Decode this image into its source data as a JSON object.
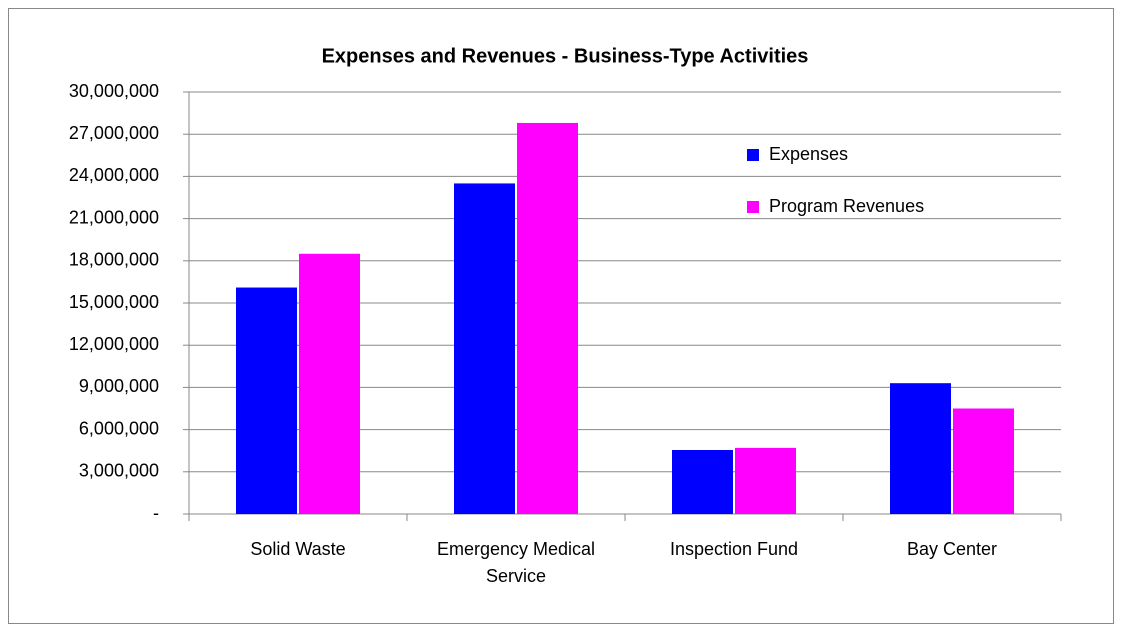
{
  "chart_data": {
    "type": "bar",
    "title": "Expenses and Revenues - Business-Type  Activities",
    "categories": [
      "Solid Waste",
      "Emergency Medical Service",
      "Inspection Fund",
      "Bay Center"
    ],
    "series": [
      {
        "name": "Expenses",
        "color": "#0000ff",
        "values": [
          16100000,
          23500000,
          4550000,
          9300000
        ]
      },
      {
        "name": "Program Revenues",
        "color": "#ff00ff",
        "values": [
          18500000,
          27800000,
          4700000,
          7500000
        ]
      }
    ],
    "ylim": [
      0,
      30000000
    ],
    "yticks": [
      {
        "value": 0,
        "label": "-"
      },
      {
        "value": 3000000,
        "label": "3,000,000"
      },
      {
        "value": 6000000,
        "label": "6,000,000"
      },
      {
        "value": 9000000,
        "label": "9,000,000"
      },
      {
        "value": 12000000,
        "label": "12,000,000"
      },
      {
        "value": 15000000,
        "label": "15,000,000"
      },
      {
        "value": 18000000,
        "label": "18,000,000"
      },
      {
        "value": 21000000,
        "label": "21,000,000"
      },
      {
        "value": 24000000,
        "label": "24,000,000"
      },
      {
        "value": 27000000,
        "label": "27,000,000"
      },
      {
        "value": 30000000,
        "label": "30,000,000"
      }
    ],
    "grid": true,
    "legend": "upper right"
  }
}
